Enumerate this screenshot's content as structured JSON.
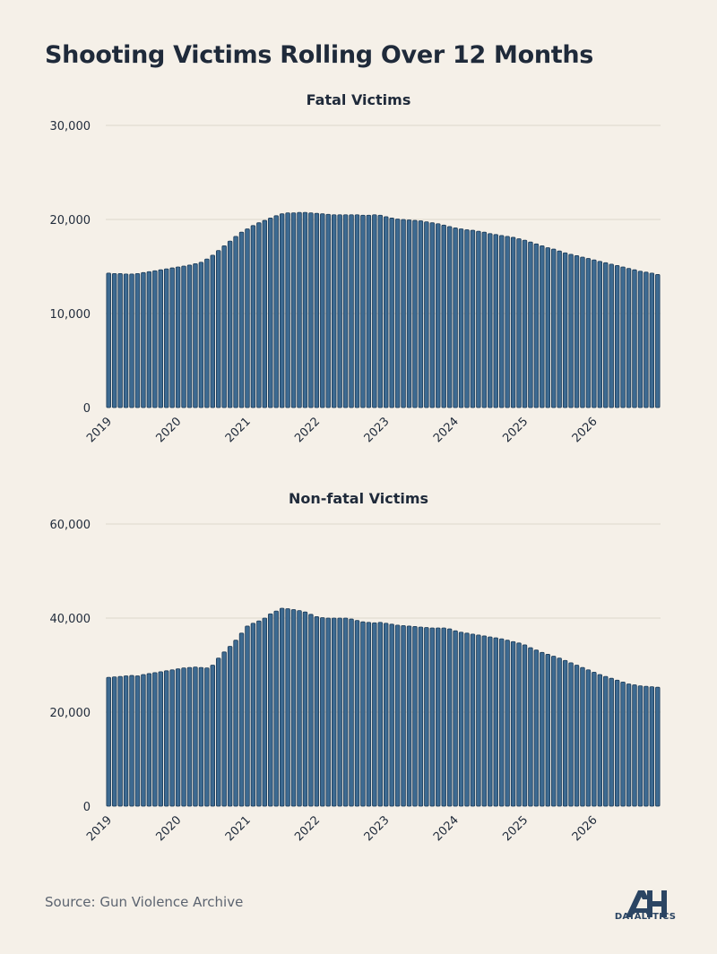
{
  "title": "Shooting Victims Rolling Over 12 Months",
  "source": "Source: Gun Violence Archive",
  "logo": {
    "text": "DATALYTICS",
    "icon": "datalytics-logo-icon"
  },
  "colors": {
    "bar": "#3d6a91",
    "bar_edge": "#1b3a57",
    "background": "#f5f0e8",
    "grid": "#ddd7cc"
  },
  "chart_data": [
    {
      "type": "bar",
      "title": "Fatal Victims",
      "xlabel": "",
      "ylabel": "",
      "ylim": [
        0,
        30000
      ],
      "yticks": [
        0,
        10000,
        20000,
        30000
      ],
      "ytick_labels": [
        "0",
        "10,000",
        "20,000",
        "30,000"
      ],
      "xtick_labels": [
        "2019",
        "2020",
        "2021",
        "2022",
        "2023",
        "2024",
        "2025",
        "2026"
      ],
      "grid": true,
      "values": [
        14300,
        14250,
        14250,
        14200,
        14200,
        14250,
        14350,
        14450,
        14550,
        14650,
        14750,
        14850,
        14950,
        15050,
        15150,
        15300,
        15450,
        15800,
        16200,
        16700,
        17200,
        17700,
        18200,
        18650,
        19000,
        19350,
        19650,
        19900,
        20150,
        20400,
        20600,
        20700,
        20700,
        20750,
        20750,
        20700,
        20650,
        20600,
        20550,
        20500,
        20500,
        20500,
        20500,
        20500,
        20450,
        20450,
        20500,
        20450,
        20300,
        20150,
        20050,
        20000,
        19950,
        19900,
        19850,
        19750,
        19650,
        19550,
        19400,
        19250,
        19100,
        19000,
        18900,
        18850,
        18750,
        18650,
        18500,
        18400,
        18300,
        18200,
        18100,
        17950,
        17800,
        17600,
        17400,
        17200,
        17000,
        16850,
        16650,
        16450,
        16300,
        16150,
        16000,
        15850,
        15700,
        15550,
        15400,
        15250,
        15100,
        14950,
        14800,
        14650,
        14500,
        14400,
        14300,
        14150
      ]
    },
    {
      "type": "bar",
      "title": "Non-fatal Victims",
      "xlabel": "",
      "ylabel": "",
      "ylim": [
        0,
        60000
      ],
      "yticks": [
        0,
        20000,
        40000,
        60000
      ],
      "ytick_labels": [
        "0",
        "20,000",
        "40,000",
        "60,000"
      ],
      "xtick_labels": [
        "2019",
        "2020",
        "2021",
        "2022",
        "2023",
        "2024",
        "2025",
        "2026"
      ],
      "grid": true,
      "values": [
        27400,
        27500,
        27600,
        27700,
        27800,
        27700,
        28000,
        28200,
        28400,
        28600,
        28800,
        29000,
        29200,
        29400,
        29500,
        29600,
        29500,
        29400,
        30000,
        31500,
        32800,
        34000,
        35300,
        36800,
        38300,
        38900,
        39400,
        40000,
        40900,
        41500,
        42100,
        42000,
        41800,
        41600,
        41300,
        40800,
        40300,
        40100,
        40000,
        40000,
        40000,
        40000,
        39800,
        39500,
        39200,
        39100,
        39000,
        39100,
        38900,
        38700,
        38500,
        38400,
        38300,
        38200,
        38100,
        38000,
        37900,
        37900,
        37900,
        37700,
        37300,
        37000,
        36800,
        36600,
        36400,
        36200,
        36000,
        35800,
        35600,
        35300,
        35000,
        34700,
        34300,
        33700,
        33200,
        32700,
        32300,
        31900,
        31500,
        31000,
        30500,
        30000,
        29500,
        29000,
        28500,
        28000,
        27600,
        27200,
        26800,
        26400,
        26000,
        25800,
        25600,
        25500,
        25400,
        25300
      ]
    }
  ]
}
